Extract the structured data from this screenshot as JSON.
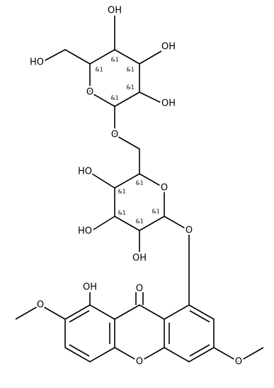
{
  "atoms": [
    "OH",
    "OH",
    "OH",
    "HO",
    "O",
    "O",
    "O",
    "HO",
    "HO",
    "OH",
    "O",
    "O",
    "OH",
    "O",
    "O",
    "O"
  ],
  "stereo": [
    "&1",
    "&1",
    "&1",
    "&1",
    "&1",
    "&1",
    "&1",
    "&1",
    "&1",
    "&1"
  ]
}
